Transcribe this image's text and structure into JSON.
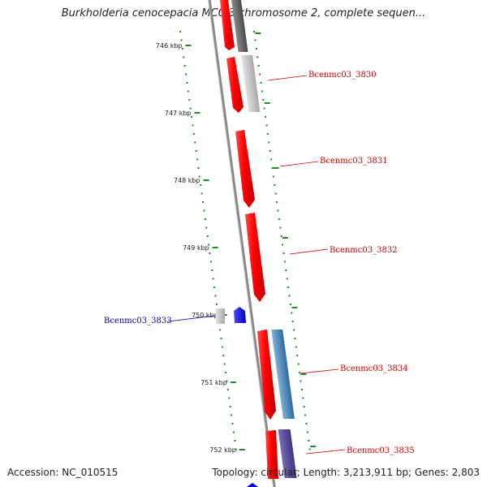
{
  "title": "Burkholderia cenocepacia MC0-3 chromosome 2, complete sequen...",
  "footer": {
    "accession": "Accession: NC_010515",
    "summary": "Topology: circular; Length: 3,213,911 bp; Genes: 2,803"
  },
  "ticks": [
    "746 kbp",
    "747 kbp",
    "748 kbp",
    "749 kbp",
    "750 kbp",
    "751 kbp",
    "752 kbp"
  ],
  "genes": [
    {
      "name": "Bcenmc03_3830",
      "strand": "reverse"
    },
    {
      "name": "Bcenmc03_3831",
      "strand": "reverse"
    },
    {
      "name": "Bcenmc03_3832",
      "strand": "reverse"
    },
    {
      "name": "Bcenmc03_3833",
      "strand": "forward"
    },
    {
      "name": "Bcenmc03_3834",
      "strand": "reverse"
    },
    {
      "name": "Bcenmc03_3835",
      "strand": "reverse"
    }
  ],
  "colors": {
    "gene_reverse": "#ff0000",
    "gene_forward": "#0000ff",
    "gc_skew": "#228b22",
    "backbone": "#888888",
    "label_reverse": "#cc0000",
    "label_forward": "#0000aa"
  }
}
